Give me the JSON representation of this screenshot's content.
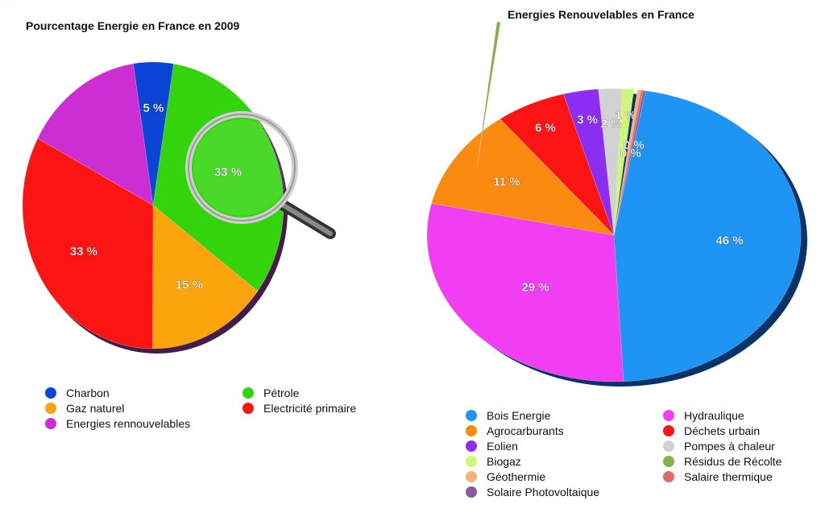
{
  "chart_data": [
    {
      "type": "pie",
      "title": "Pourcentage Energie en France en 2009",
      "slices": [
        {
          "name": "Energies rennouvelables",
          "value": 15,
          "label": "15 %",
          "color": "#cc2ed3"
        },
        {
          "name": "Charbon",
          "value": 5,
          "label": "5 %",
          "color": "#0a45d6"
        },
        {
          "name": "Pétrole",
          "value": 33,
          "label": "33 %",
          "color": "#33d40c"
        },
        {
          "name": "Gaz naturel",
          "value": 15,
          "label": "15 %",
          "color": "#fca40b"
        },
        {
          "name": "Electricité primaire",
          "value": 33,
          "label": "33 %",
          "color": "#fb1512"
        }
      ],
      "legend": [
        {
          "name": "Charbon",
          "color": "#0a45d6"
        },
        {
          "name": "Pétrole",
          "color": "#33d40c"
        },
        {
          "name": "Gaz naturel",
          "color": "#fca40b"
        },
        {
          "name": "Electricité primaire",
          "color": "#fb1512"
        },
        {
          "name": "Energies rennouvelables",
          "color": "#cc2ed3"
        }
      ],
      "legend_placement": "bottom"
    },
    {
      "type": "pie",
      "title": "Energies Renouvelables en France",
      "slices": [
        {
          "name": "Bois Energie",
          "value": 46,
          "label": "46 %",
          "color": "#1e95f5"
        },
        {
          "name": "Hydraulique",
          "value": 29,
          "label": "29 %",
          "color": "#f13ef2"
        },
        {
          "name": "Agrocarburants",
          "value": 11,
          "label": "11 %",
          "color": "#fb8a10"
        },
        {
          "name": "Déchets urbain",
          "value": 6,
          "label": "6 %",
          "color": "#fb1414"
        },
        {
          "name": "Eolien",
          "value": 3,
          "label": "3 %",
          "color": "#8b2ef2"
        },
        {
          "name": "Pompes à chaleur",
          "value": 2,
          "label": "2 %",
          "color": "#d2d2d2"
        },
        {
          "name": "Biogaz",
          "value": 1,
          "label": "1 %",
          "color": "#cdf67a"
        },
        {
          "name": "Résidus de Récolte",
          "value": 0.3,
          "label": "0 %",
          "color": "#86b04a"
        },
        {
          "name": "Géothermie",
          "value": 0.3,
          "label": "0 %",
          "color": "#f2b37a"
        },
        {
          "name": "Salaire thermique",
          "value": 0.2,
          "label": "",
          "color": "#e06a6a"
        },
        {
          "name": "Solaire Photovoltaique",
          "value": 0.2,
          "label": "",
          "color": "#8a5aa0"
        }
      ],
      "legend": [
        {
          "name": "Bois Energie",
          "color": "#1e95f5"
        },
        {
          "name": "Hydraulique",
          "color": "#f13ef2"
        },
        {
          "name": "Agrocarburants",
          "color": "#fb8a10"
        },
        {
          "name": "Déchets urbain",
          "color": "#fb1414"
        },
        {
          "name": "Eolien",
          "color": "#8b2ef2"
        },
        {
          "name": "Pompes à chaleur",
          "color": "#d2d2d2"
        },
        {
          "name": "Biogaz",
          "color": "#cdf67a"
        },
        {
          "name": "Résidus de Récolte",
          "color": "#86b04a"
        },
        {
          "name": "Géothermie",
          "color": "#f2b37a"
        },
        {
          "name": "Salaire thermique",
          "color": "#e06a6a"
        },
        {
          "name": "Solaire Photovoltaique",
          "color": "#8a5aa0"
        }
      ],
      "legend_placement": "bottom"
    }
  ]
}
